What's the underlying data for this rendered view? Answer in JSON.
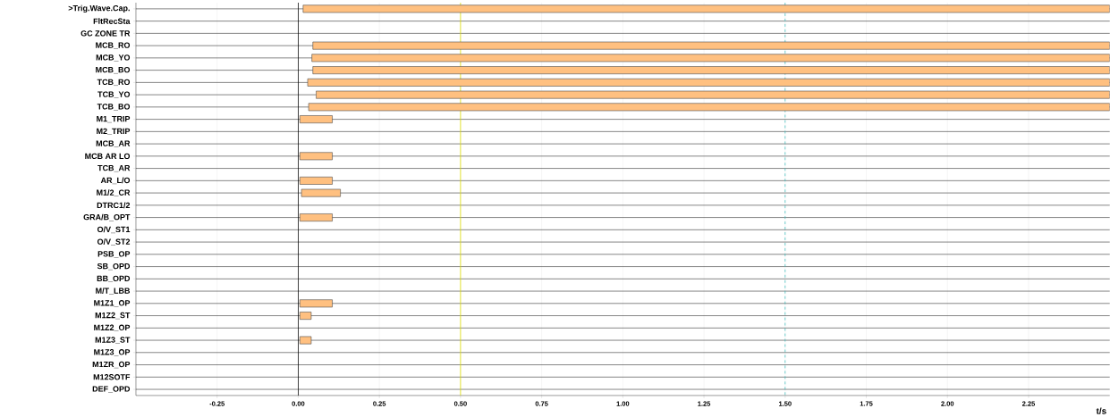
{
  "chart_data": {
    "type": "bar",
    "orientation": "horizontal",
    "xlabel": "t/s",
    "categories": [
      ">Trig.Wave.Cap.",
      "FltRecSta",
      "GC ZONE TR",
      "MCB_RO",
      "MCB_YO",
      "MCB_BO",
      "TCB_RO",
      "TCB_YO",
      "TCB_BO",
      "M1_TRIP",
      "M2_TRIP",
      "MCB_AR",
      "MCB AR LO",
      "TCB_AR",
      "AR_L/O",
      "M1/2_CR",
      "DTRC1/2",
      "GRA/B_OPT",
      "O/V_ST1",
      "O/V_ST2",
      "PSB_OP",
      "SB_OPD",
      "BB_OPD",
      "M/T_LBB",
      "M1Z1_OP",
      "M1Z2_ST",
      "M1Z2_OP",
      "M1Z3_ST",
      "M1Z3_OP",
      "M1ZR_OP",
      "M12SOTF",
      "DEF_OPD"
    ],
    "base": [
      0.015,
      null,
      null,
      0.045,
      0.042,
      0.045,
      0.029,
      0.055,
      0.032,
      0.005,
      null,
      null,
      0.005,
      null,
      0.005,
      0.01,
      null,
      0.005,
      null,
      null,
      null,
      null,
      null,
      null,
      0.005,
      0.005,
      null,
      0.005,
      null,
      null,
      null,
      null
    ],
    "values": [
      2.485,
      null,
      null,
      2.455,
      2.458,
      2.455,
      2.471,
      2.445,
      2.468,
      0.1,
      null,
      null,
      0.1,
      null,
      0.1,
      0.12,
      null,
      0.1,
      null,
      null,
      null,
      null,
      null,
      null,
      0.1,
      0.035,
      null,
      0.035,
      null,
      null,
      null,
      null
    ],
    "color": "#ffc080",
    "xlim": [
      -0.5,
      2.5
    ],
    "xticks": [
      {
        "value": -0.25,
        "label": "-0.25"
      },
      {
        "value": 0,
        "label": "0.00"
      },
      {
        "value": 0.25,
        "label": "0.25"
      },
      {
        "value": 0.5,
        "label": "0.50"
      },
      {
        "value": 0.75,
        "label": "0.75"
      },
      {
        "value": 1,
        "label": "1.00"
      },
      {
        "value": 1.25,
        "label": "1.25"
      },
      {
        "value": 1.5,
        "label": "1.50"
      },
      {
        "value": 1.75,
        "label": "1.75"
      },
      {
        "value": 2,
        "label": "2.00"
      },
      {
        "value": 2.25,
        "label": "2.25"
      }
    ],
    "grid": true,
    "ref_lines": [
      {
        "axis": "x",
        "value": 0,
        "color": "#000000"
      },
      {
        "axis": "x",
        "value": 0.5,
        "color": "#e0e000"
      },
      {
        "axis": "x",
        "value": 1.5,
        "color": "#40c0c0",
        "line_style": "dashed"
      }
    ]
  }
}
